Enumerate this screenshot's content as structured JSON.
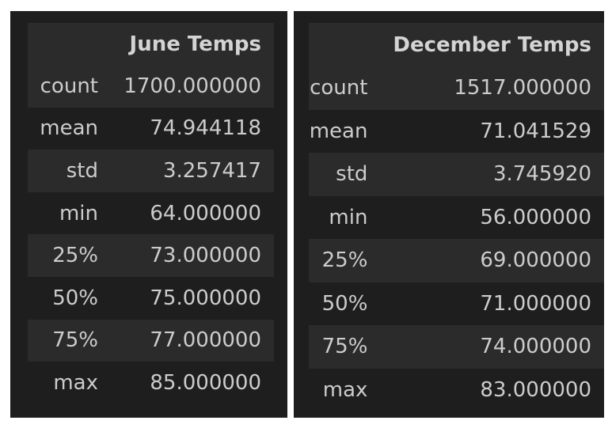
{
  "june": {
    "column_header": "June Temps",
    "rows": [
      {
        "label": "count",
        "value": "1700.000000"
      },
      {
        "label": "mean",
        "value": "74.944118"
      },
      {
        "label": "std",
        "value": "3.257417"
      },
      {
        "label": "min",
        "value": "64.000000"
      },
      {
        "label": "25%",
        "value": "73.000000"
      },
      {
        "label": "50%",
        "value": "75.000000"
      },
      {
        "label": "75%",
        "value": "77.000000"
      },
      {
        "label": "max",
        "value": "85.000000"
      }
    ]
  },
  "december": {
    "column_header": "December Temps",
    "rows": [
      {
        "label": "count",
        "value": "1517.000000"
      },
      {
        "label": "mean",
        "value": "71.041529"
      },
      {
        "label": "std",
        "value": "3.745920"
      },
      {
        "label": "min",
        "value": "56.000000"
      },
      {
        "label": "25%",
        "value": "69.000000"
      },
      {
        "label": "50%",
        "value": "71.000000"
      },
      {
        "label": "75%",
        "value": "74.000000"
      },
      {
        "label": "max",
        "value": "83.000000"
      }
    ]
  },
  "colors": {
    "panel_background": "#1e1e1e",
    "row_stripe": "#2b2b2b",
    "text": "#cccccc"
  }
}
